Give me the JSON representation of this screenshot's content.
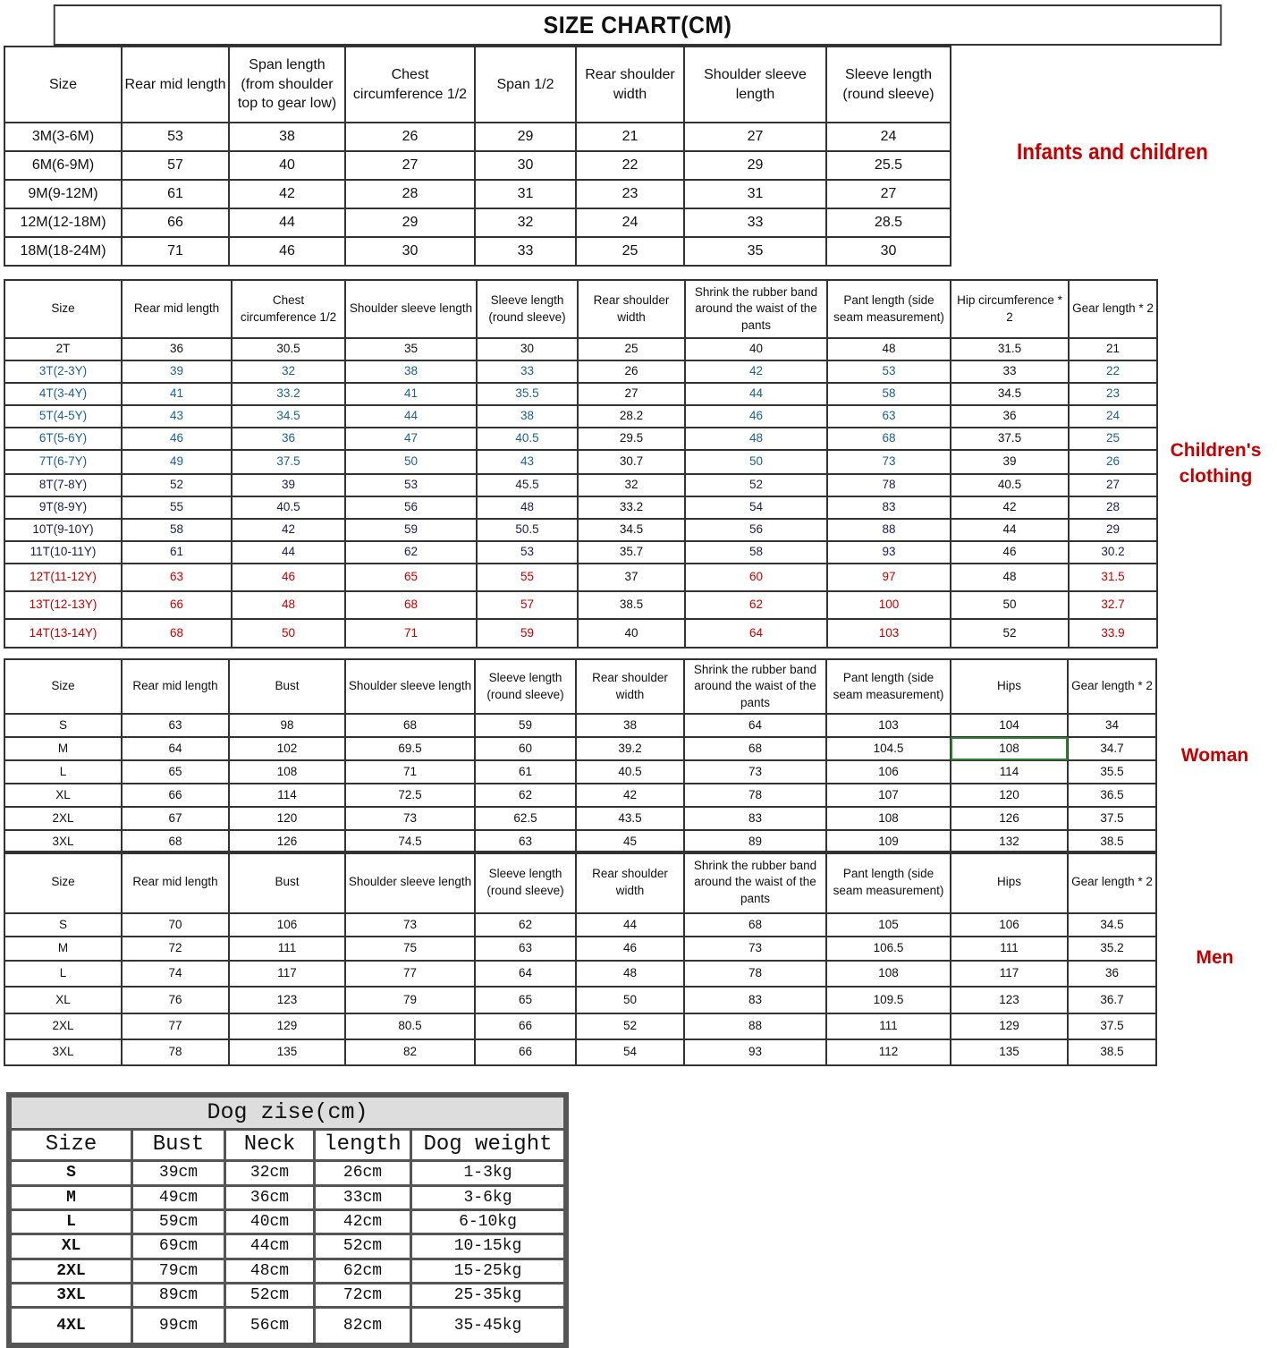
{
  "title": "SIZE CHART(CM)",
  "sections": [
    {
      "id": "s1",
      "label": "Infants and children",
      "headers": [
        "Size",
        "Rear mid length",
        "Span length (from shoulder top to gear low)",
        "Chest circumference 1/2",
        "Span 1/2",
        "Rear shoulder width",
        "Shoulder sleeve length",
        "Sleeve length (round sleeve)"
      ],
      "rows": [
        {
          "color": "black",
          "cells": [
            "3M(3-6M)",
            "53",
            "38",
            "26",
            "29",
            "21",
            "27",
            "24"
          ]
        },
        {
          "color": "black",
          "cells": [
            "6M(6-9M)",
            "57",
            "40",
            "27",
            "30",
            "22",
            "29",
            "25.5"
          ]
        },
        {
          "color": "black",
          "cells": [
            "9M(9-12M)",
            "61",
            "42",
            "28",
            "31",
            "23",
            "31",
            "27"
          ]
        },
        {
          "color": "black",
          "cells": [
            "12M(12-18M)",
            "66",
            "44",
            "29",
            "32",
            "24",
            "33",
            "28.5"
          ]
        },
        {
          "color": "black",
          "cells": [
            "18M(18-24M)",
            "71",
            "46",
            "30",
            "33",
            "25",
            "35",
            "30"
          ]
        }
      ]
    },
    {
      "id": "s2",
      "label": "Children's clothing",
      "uncolored_columns": [
        5,
        8
      ],
      "headers": [
        "Size",
        "Rear mid length",
        "Chest circumference 1/2",
        "Shoulder sleeve length",
        "Sleeve length (round sleeve)",
        "Rear shoulder width",
        "Shrink the rubber band around the waist of the pants",
        "Pant length (side seam measurement)",
        "Hip circumference * 2",
        "Gear length * 2"
      ],
      "rows": [
        {
          "color": "black",
          "cells": [
            "2T",
            "36",
            "30.5",
            "35",
            "30",
            "25",
            "40",
            "48",
            "31.5",
            "21"
          ]
        },
        {
          "color": "blue",
          "cells": [
            "3T(2-3Y)",
            "39",
            "32",
            "38",
            "33",
            "26",
            "42",
            "53",
            "33",
            "22"
          ]
        },
        {
          "color": "blue",
          "cells": [
            "4T(3-4Y)",
            "41",
            "33.2",
            "41",
            "35.5",
            "27",
            "44",
            "58",
            "34.5",
            "23"
          ]
        },
        {
          "color": "blue",
          "cells": [
            "5T(4-5Y)",
            "43",
            "34.5",
            "44",
            "38",
            "28.2",
            "46",
            "63",
            "36",
            "24"
          ]
        },
        {
          "color": "blue",
          "cells": [
            "6T(5-6Y)",
            "46",
            "36",
            "47",
            "40.5",
            "29.5",
            "48",
            "68",
            "37.5",
            "25"
          ]
        },
        {
          "color": "blue",
          "cells": [
            "7T(6-7Y)",
            "49",
            "37.5",
            "50",
            "43",
            "30.7",
            "50",
            "73",
            "39",
            "26"
          ]
        },
        {
          "color": "navy",
          "cells": [
            "8T(7-8Y)",
            "52",
            "39",
            "53",
            "45.5",
            "32",
            "52",
            "78",
            "40.5",
            "27"
          ]
        },
        {
          "color": "navy",
          "cells": [
            "9T(8-9Y)",
            "55",
            "40.5",
            "56",
            "48",
            "33.2",
            "54",
            "83",
            "42",
            "28"
          ]
        },
        {
          "color": "navy",
          "cells": [
            "10T(9-10Y)",
            "58",
            "42",
            "59",
            "50.5",
            "34.5",
            "56",
            "88",
            "44",
            "29"
          ]
        },
        {
          "color": "navy",
          "cells": [
            "11T(10-11Y)",
            "61",
            "44",
            "62",
            "53",
            "35.7",
            "58",
            "93",
            "46",
            "30.2"
          ]
        },
        {
          "color": "red",
          "cells": [
            "12T(11-12Y)",
            "63",
            "46",
            "65",
            "55",
            "37",
            "60",
            "97",
            "48",
            "31.5"
          ]
        },
        {
          "color": "red",
          "cells": [
            "13T(12-13Y)",
            "66",
            "48",
            "68",
            "57",
            "38.5",
            "62",
            "100",
            "50",
            "32.7"
          ]
        },
        {
          "color": "red",
          "cells": [
            "14T(13-14Y)",
            "68",
            "50",
            "71",
            "59",
            "40",
            "64",
            "103",
            "52",
            "33.9"
          ]
        }
      ]
    },
    {
      "id": "s3",
      "label": "Woman",
      "headers": [
        "Size",
        "Rear mid length",
        "Bust",
        "Shoulder sleeve length",
        "Sleeve length (round sleeve)",
        "Rear shoulder width",
        "Shrink the rubber band around the waist of the pants",
        "Pant length (side seam measurement)",
        "Hips",
        "Gear length * 2"
      ],
      "rows": [
        {
          "color": "black",
          "cells": [
            "S",
            "63",
            "98",
            "68",
            "59",
            "38",
            "64",
            "103",
            "104",
            "34"
          ]
        },
        {
          "color": "black",
          "cells": [
            "M",
            "64",
            "102",
            "69.5",
            "60",
            "39.2",
            "68",
            "104.5",
            "108",
            "34.7"
          ]
        },
        {
          "color": "black",
          "cells": [
            "L",
            "65",
            "108",
            "71",
            "61",
            "40.5",
            "73",
            "106",
            "114",
            "35.5"
          ]
        },
        {
          "color": "black",
          "cells": [
            "XL",
            "66",
            "114",
            "72.5",
            "62",
            "42",
            "78",
            "107",
            "120",
            "36.5"
          ]
        },
        {
          "color": "black",
          "cells": [
            "2XL",
            "67",
            "120",
            "73",
            "62.5",
            "43.5",
            "83",
            "108",
            "126",
            "37.5"
          ]
        },
        {
          "color": "black",
          "cells": [
            "3XL",
            "68",
            "126",
            "74.5",
            "63",
            "45",
            "89",
            "109",
            "132",
            "38.5"
          ]
        }
      ]
    },
    {
      "id": "s4",
      "label": "Men",
      "headers": [
        "Size",
        "Rear mid length",
        "Bust",
        "Shoulder sleeve length",
        "Sleeve length (round sleeve)",
        "Rear shoulder width",
        "Shrink the rubber band around the waist of the pants",
        "Pant length (side seam measurement)",
        "Hips",
        "Gear length * 2"
      ],
      "rows": [
        {
          "color": "black",
          "cells": [
            "S",
            "70",
            "106",
            "73",
            "62",
            "44",
            "68",
            "105",
            "106",
            "34.5"
          ]
        },
        {
          "color": "black",
          "cells": [
            "M",
            "72",
            "111",
            "75",
            "63",
            "46",
            "73",
            "106.5",
            "111",
            "35.2"
          ]
        },
        {
          "color": "black",
          "cells": [
            "L",
            "74",
            "117",
            "77",
            "64",
            "48",
            "78",
            "108",
            "117",
            "36"
          ]
        },
        {
          "color": "black",
          "cells": [
            "XL",
            "76",
            "123",
            "79",
            "65",
            "50",
            "83",
            "109.5",
            "123",
            "36.7"
          ]
        },
        {
          "color": "black",
          "cells": [
            "2XL",
            "77",
            "129",
            "80.5",
            "66",
            "52",
            "88",
            "111",
            "129",
            "37.5"
          ]
        },
        {
          "color": "black",
          "cells": [
            "3XL",
            "78",
            "135",
            "82",
            "66",
            "54",
            "93",
            "112",
            "135",
            "38.5"
          ]
        }
      ]
    }
  ],
  "dog": {
    "title": "Dog zise(cm)",
    "headers": [
      "Size",
      "Bust",
      "Neck",
      "length",
      "Dog weight"
    ],
    "rows": [
      [
        "S",
        "39cm",
        "32cm",
        "26cm",
        "1-3kg"
      ],
      [
        "M",
        "49cm",
        "36cm",
        "33cm",
        "3-6kg"
      ],
      [
        "L",
        "59cm",
        "40cm",
        "42cm",
        "6-10kg"
      ],
      [
        "XL",
        "69cm",
        "44cm",
        "52cm",
        "10-15kg"
      ],
      [
        "2XL",
        "79cm",
        "48cm",
        "62cm",
        "15-25kg"
      ],
      [
        "3XL",
        "89cm",
        "52cm",
        "72cm",
        "25-35kg"
      ],
      [
        "4XL",
        "99cm",
        "56cm",
        "82cm",
        "35-45kg"
      ]
    ]
  },
  "colors": {
    "label_red": "#c00000",
    "blue": "#1f5f8b",
    "navy": "#1a1f4a",
    "red": "#c00000",
    "selection": "#2e7d32"
  }
}
